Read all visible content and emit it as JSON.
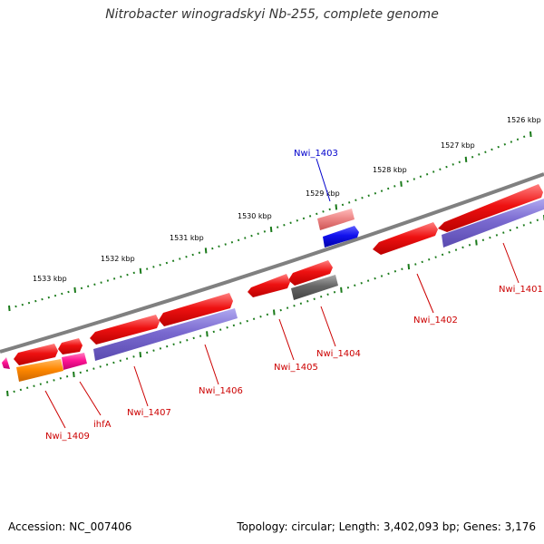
{
  "title": "Nitrobacter winogradskyi Nb-255, complete genome",
  "footer": {
    "accession": "Accession: NC_007406",
    "summary": "Topology: circular; Length: 3,402,093 bp; Genes: 3,176"
  },
  "colors": {
    "backbone": "#808080",
    "ticks": "#1a7a1a",
    "gene_red": "#ee1111",
    "gene_purple": "#7a6ad0",
    "gene_gray": "#666666",
    "gene_blue": "#1111ee",
    "gene_salmon": "#ee8888",
    "gene_orange": "#ff8800",
    "gene_pink": "#ff1493",
    "label_red": "#cc0000",
    "label_blue": "#0000cc"
  },
  "kbp_labels": [
    "1526 kbp",
    "1527 kbp",
    "1528 kbp",
    "1529 kbp",
    "1530 kbp",
    "1531 kbp",
    "1532 kbp",
    "1533 kbp"
  ],
  "gene_labels": [
    "Nwi_1401",
    "Nwi_1402",
    "Nwi_1403",
    "Nwi_1404",
    "Nwi_1405",
    "Nwi_1406",
    "Nwi_1407",
    "ihfA",
    "Nwi_1409"
  ]
}
